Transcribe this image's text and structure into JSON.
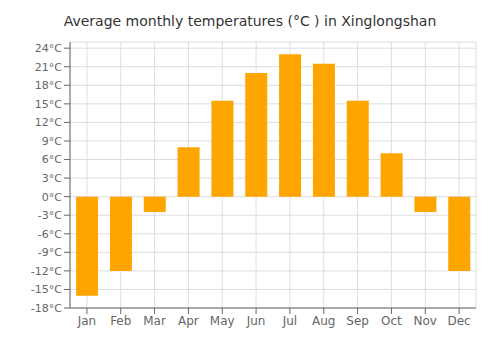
{
  "chart_data": {
    "type": "bar",
    "title": "Average monthly temperatures (°C ) in Xinglongshan",
    "categories": [
      "Jan",
      "Feb",
      "Mar",
      "Apr",
      "May",
      "Jun",
      "Jul",
      "Aug",
      "Sep",
      "Oct",
      "Nov",
      "Dec"
    ],
    "values": [
      -16,
      -12,
      -2.5,
      8,
      15.5,
      20,
      23,
      21.5,
      15.5,
      7,
      -2.5,
      -12
    ],
    "color": "#FFA500",
    "ylim": [
      -18,
      25
    ],
    "yticks": [
      {
        "value": -18,
        "label": "-18°C"
      },
      {
        "value": -15,
        "label": "-15°C"
      },
      {
        "value": -12,
        "label": "-12°C"
      },
      {
        "value": -9,
        "label": "-9°C"
      },
      {
        "value": -6,
        "label": "-6°C"
      },
      {
        "value": -3,
        "label": "-3°C"
      },
      {
        "value": 0,
        "label": "0°C"
      },
      {
        "value": 3,
        "label": "3°C"
      },
      {
        "value": 6,
        "label": "6°C"
      },
      {
        "value": 9,
        "label": "9°C"
      },
      {
        "value": 12,
        "label": "12°C"
      },
      {
        "value": 15,
        "label": "15°C"
      },
      {
        "value": 18,
        "label": "18°C"
      },
      {
        "value": 21,
        "label": "21°C"
      },
      {
        "value": 24,
        "label": "24°C"
      }
    ],
    "grid": true
  }
}
